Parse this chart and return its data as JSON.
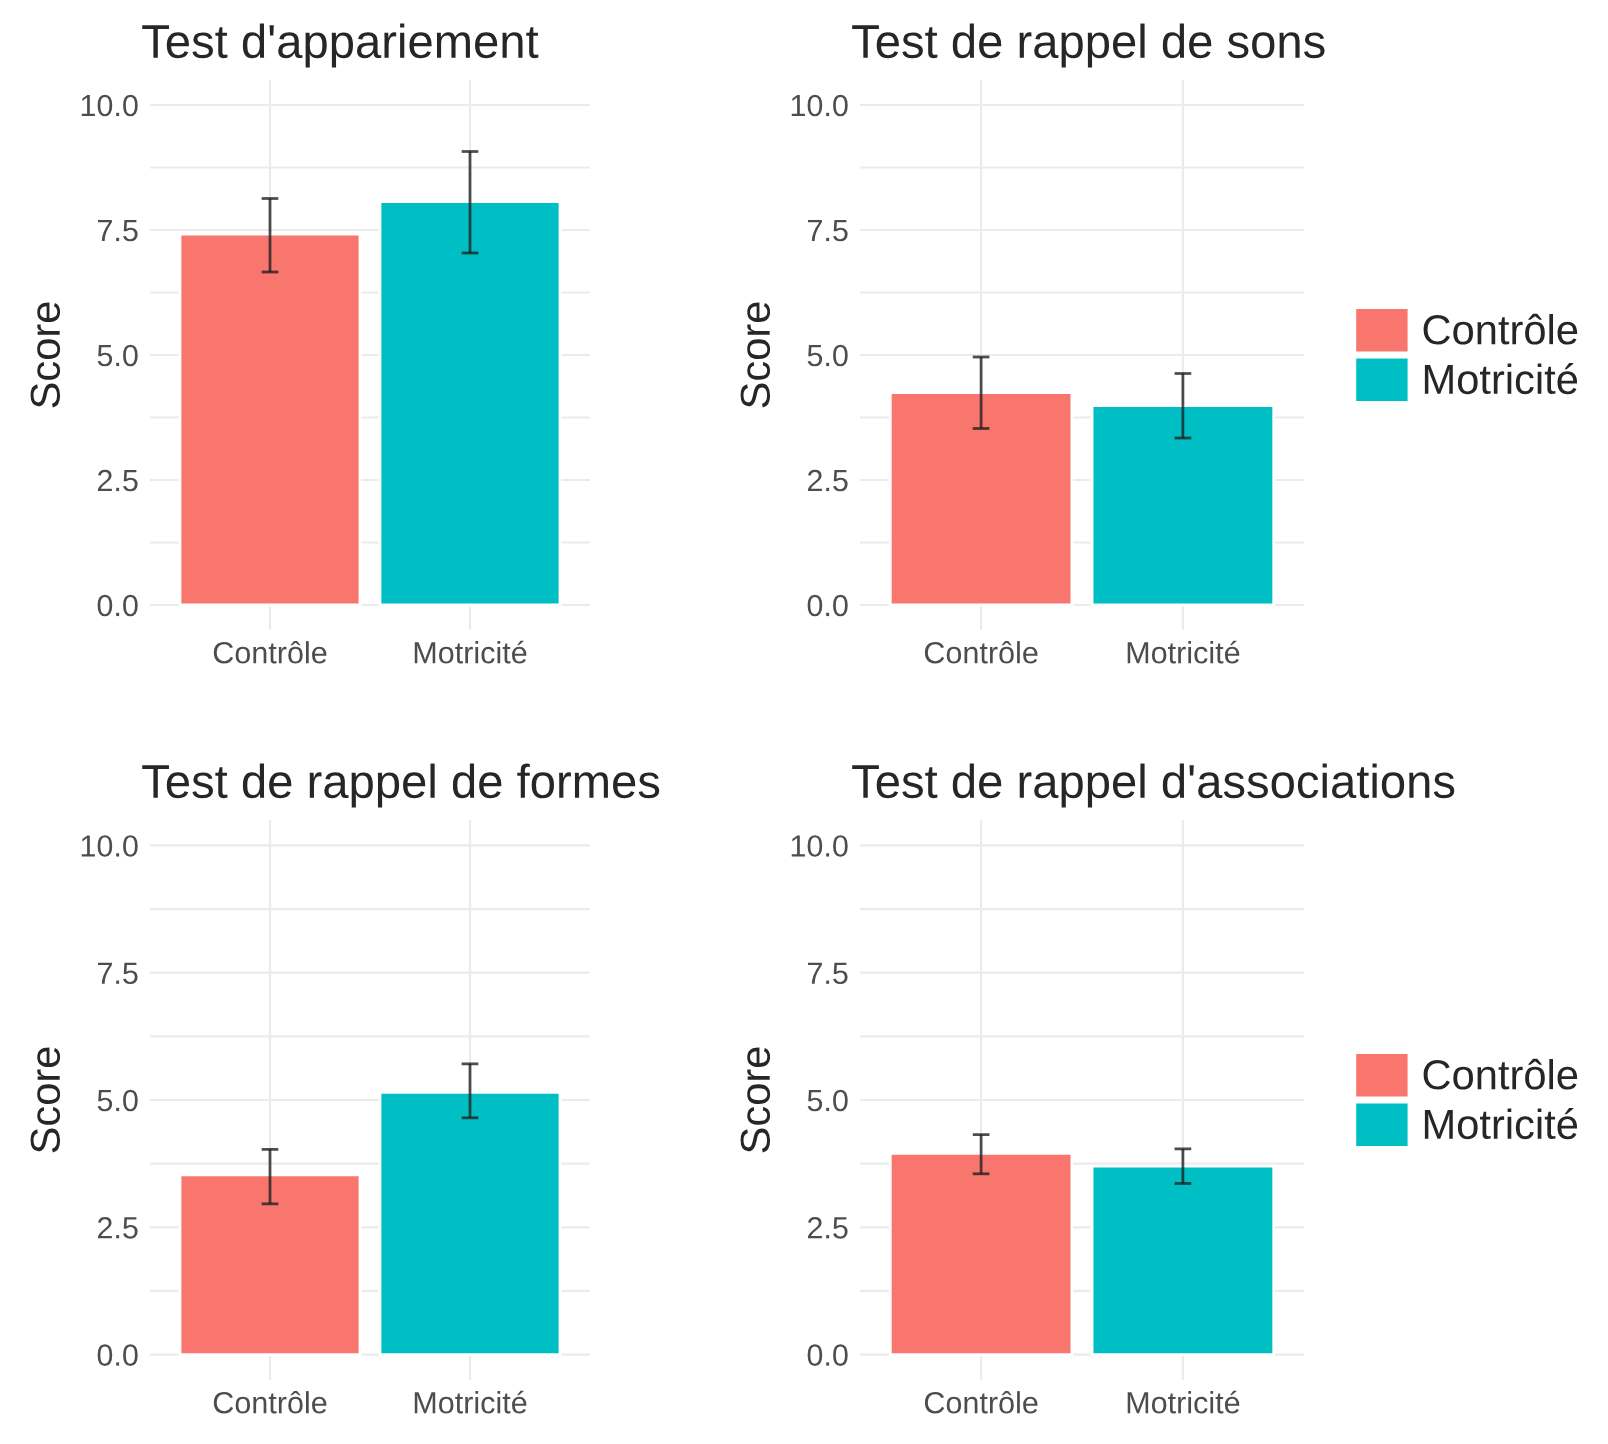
{
  "chart_data": [
    {
      "type": "bar",
      "title": "Test d'appariement",
      "ylabel": "Score",
      "categories": [
        "Contrôle",
        "Motricité"
      ],
      "series": [
        {
          "color": "#f8766d",
          "values": [
            7.42,
            null
          ],
          "errors": [
            [
              6.66,
              8.13
            ],
            null
          ]
        },
        {
          "color": "#00bfc4",
          "values": [
            null,
            8.07
          ],
          "errors": [
            null,
            [
              7.04,
              9.07
            ]
          ]
        }
      ],
      "ylim": [
        -0.5,
        10.5
      ],
      "yticks": [
        {
          "value": 0,
          "label": "0.0"
        },
        {
          "value": 1.25,
          "label": null
        },
        {
          "value": 2.5,
          "label": "2.5"
        },
        {
          "value": 3.75,
          "label": null
        },
        {
          "value": 5,
          "label": "5.0"
        },
        {
          "value": 6.25,
          "label": null
        },
        {
          "value": 7.5,
          "label": "7.5"
        },
        {
          "value": 8.75,
          "label": null
        },
        {
          "value": 10,
          "label": "10.0"
        }
      ],
      "grid": true
    },
    {
      "type": "bar",
      "title": "Test de rappel de sons",
      "ylabel": "Score",
      "categories": [
        "Contrôle",
        "Motricité"
      ],
      "series": [
        {
          "name": "Contrôle",
          "color": "#f8766d",
          "values": [
            4.25,
            null
          ],
          "errors": [
            [
              3.53,
              4.96
            ],
            null
          ]
        },
        {
          "name": "Motricité",
          "color": "#00bfc4",
          "values": [
            null,
            3.99
          ],
          "errors": [
            null,
            [
              3.34,
              4.63
            ]
          ]
        }
      ],
      "ylim": [
        -0.5,
        10.5
      ],
      "yticks": [
        {
          "value": 0,
          "label": "0.0"
        },
        {
          "value": 1.25,
          "label": null
        },
        {
          "value": 2.5,
          "label": "2.5"
        },
        {
          "value": 3.75,
          "label": null
        },
        {
          "value": 5,
          "label": "5.0"
        },
        {
          "value": 6.25,
          "label": null
        },
        {
          "value": 7.5,
          "label": "7.5"
        },
        {
          "value": 8.75,
          "label": null
        },
        {
          "value": 10,
          "label": "10.0"
        }
      ],
      "grid": true,
      "legend": "right"
    },
    {
      "type": "bar",
      "title": "Test de rappel de formes",
      "ylabel": "Score",
      "categories": [
        "Contrôle",
        "Motricité"
      ],
      "series": [
        {
          "color": "#f8766d",
          "values": [
            3.53,
            null
          ],
          "errors": [
            [
              2.96,
              4.03
            ],
            null
          ]
        },
        {
          "color": "#00bfc4",
          "values": [
            null,
            5.15
          ],
          "errors": [
            null,
            [
              4.65,
              5.71
            ]
          ]
        }
      ],
      "ylim": [
        -0.5,
        10.5
      ],
      "yticks": [
        {
          "value": 0,
          "label": "0.0"
        },
        {
          "value": 1.25,
          "label": null
        },
        {
          "value": 2.5,
          "label": "2.5"
        },
        {
          "value": 3.75,
          "label": null
        },
        {
          "value": 5,
          "label": "5.0"
        },
        {
          "value": 6.25,
          "label": null
        },
        {
          "value": 7.5,
          "label": "7.5"
        },
        {
          "value": 8.75,
          "label": null
        },
        {
          "value": 10,
          "label": "10.0"
        }
      ],
      "grid": true
    },
    {
      "type": "bar",
      "title": "Test de rappel d'associations",
      "ylabel": "Score",
      "categories": [
        "Contrôle",
        "Motricité"
      ],
      "series": [
        {
          "name": "Contrôle",
          "color": "#f8766d",
          "values": [
            3.95,
            null
          ],
          "errors": [
            [
              3.55,
              4.32
            ],
            null
          ]
        },
        {
          "name": "Motricité",
          "color": "#00bfc4",
          "values": [
            null,
            3.7
          ],
          "errors": [
            null,
            [
              3.36,
              4.04
            ]
          ]
        }
      ],
      "ylim": [
        -0.5,
        10.5
      ],
      "yticks": [
        {
          "value": 0,
          "label": "0.0"
        },
        {
          "value": 1.25,
          "label": null
        },
        {
          "value": 2.5,
          "label": "2.5"
        },
        {
          "value": 3.75,
          "label": null
        },
        {
          "value": 5,
          "label": "5.0"
        },
        {
          "value": 6.25,
          "label": null
        },
        {
          "value": 7.5,
          "label": "7.5"
        },
        {
          "value": 8.75,
          "label": null
        },
        {
          "value": 10,
          "label": "10.0"
        }
      ],
      "grid": true,
      "legend": "right"
    }
  ]
}
